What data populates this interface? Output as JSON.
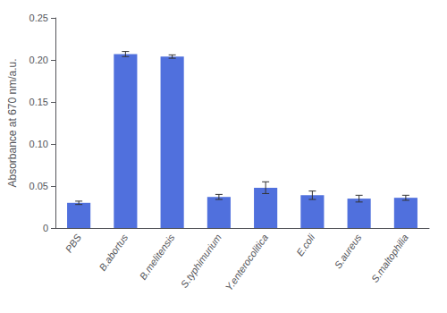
{
  "chart_data": {
    "type": "bar",
    "categories": [
      "PBS",
      "B.abortus",
      "B.melitensis",
      "S.typhimurium",
      "Y.enterocolitica",
      "E.coli",
      "S.aureus",
      "S.maltophilia"
    ],
    "values": [
      0.03,
      0.207,
      0.204,
      0.037,
      0.048,
      0.039,
      0.035,
      0.036
    ],
    "errors": [
      0.002,
      0.003,
      0.002,
      0.003,
      0.007,
      0.005,
      0.004,
      0.003
    ],
    "ylabel": "Absorbance at 670 nm/a.u.",
    "ylim": [
      0,
      0.25
    ],
    "yticks": [
      0,
      0.05,
      {
        "value": 0.1,
        "label": "0.10"
      },
      0.15,
      {
        "value": 0.2,
        "label": "0.20"
      },
      0.25
    ],
    "grid": false
  }
}
